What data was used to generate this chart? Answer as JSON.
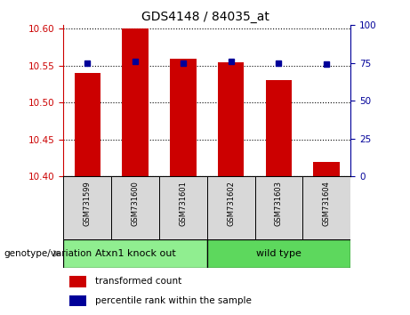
{
  "title": "GDS4148 / 84035_at",
  "samples": [
    "GSM731599",
    "GSM731600",
    "GSM731601",
    "GSM731602",
    "GSM731603",
    "GSM731604"
  ],
  "red_values": [
    10.54,
    10.6,
    10.56,
    10.555,
    10.53,
    10.42
  ],
  "blue_values": [
    75,
    76,
    75,
    76,
    75,
    74
  ],
  "ylim_left": [
    10.4,
    10.605
  ],
  "ylim_right": [
    0,
    100
  ],
  "yticks_left": [
    10.4,
    10.45,
    10.5,
    10.55,
    10.6
  ],
  "yticks_right": [
    0,
    25,
    50,
    75,
    100
  ],
  "groups": [
    {
      "label": "Atxn1 knock out",
      "indices": [
        0,
        1,
        2
      ],
      "color": "#90EE90"
    },
    {
      "label": "wild type",
      "indices": [
        3,
        4,
        5
      ],
      "color": "#5DD85D"
    }
  ],
  "bar_color": "#CC0000",
  "dot_color": "#000099",
  "bar_width": 0.55,
  "base_value": 10.4,
  "legend_items": [
    {
      "label": "transformed count",
      "color": "#CC0000"
    },
    {
      "label": "percentile rank within the sample",
      "color": "#000099"
    }
  ],
  "genotype_label": "genotype/variation",
  "grid_color": "black",
  "sample_bg": "#d8d8d8",
  "plot_bg": "#ffffff",
  "left_spine_color": "#CC0000",
  "right_spine_color": "#000099"
}
